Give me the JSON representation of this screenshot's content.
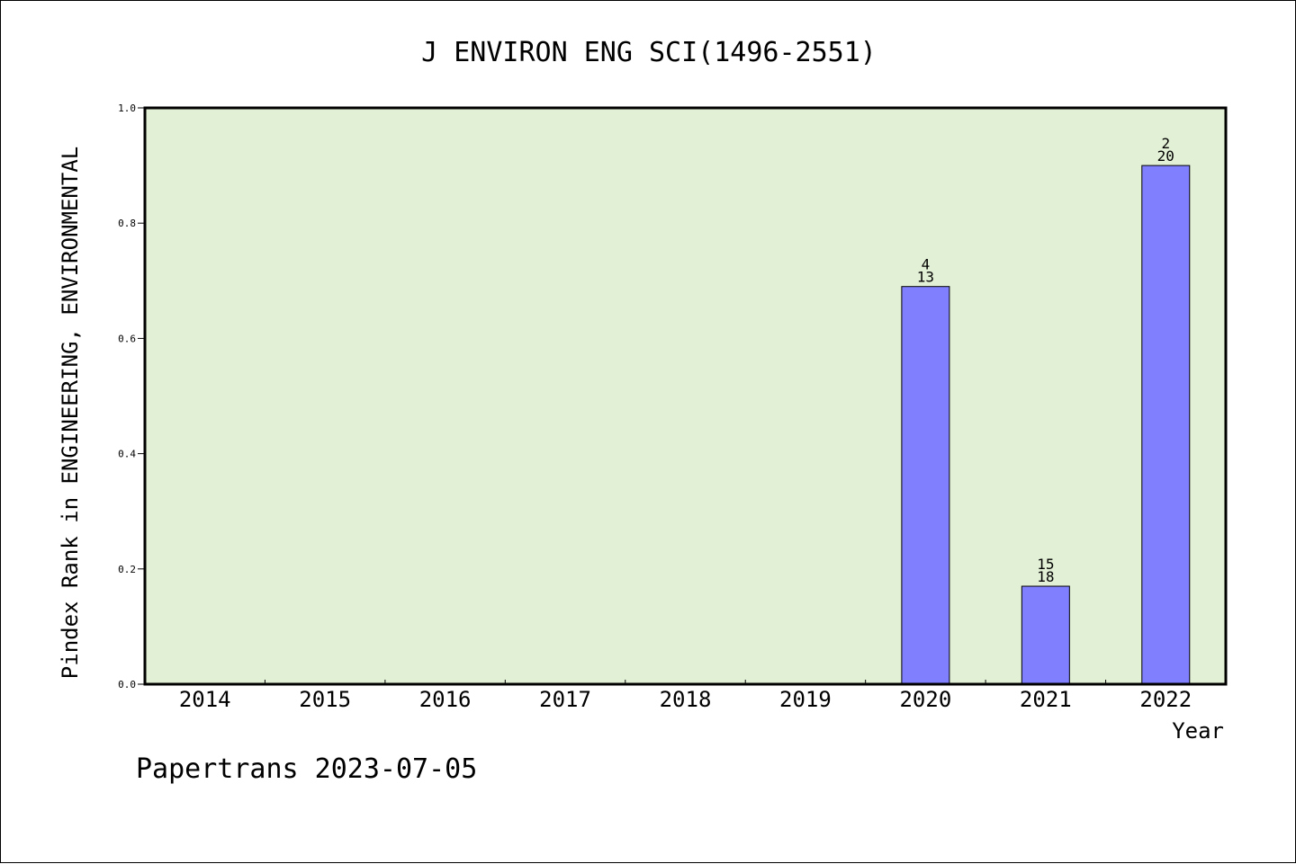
{
  "chart_data": {
    "type": "bar",
    "title": "J ENVIRON ENG SCI(1496-2551)",
    "xlabel": "Year",
    "ylabel": "Pindex Rank in ENGINEERING, ENVIRONMENTAL",
    "categories": [
      "2014",
      "2015",
      "2016",
      "2017",
      "2018",
      "2019",
      "2020",
      "2021",
      "2022"
    ],
    "values": [
      null,
      null,
      null,
      null,
      null,
      null,
      0.69,
      0.17,
      0.9
    ],
    "bar_labels": [
      null,
      null,
      null,
      null,
      null,
      null,
      {
        "top": "4",
        "bottom": "13"
      },
      {
        "top": "15",
        "bottom": "18"
      },
      {
        "top": "2",
        "bottom": "20"
      }
    ],
    "ylim": [
      0,
      1.0
    ],
    "yticks": [
      "0.0",
      "0.2",
      "0.4",
      "0.6",
      "0.8",
      "1.0"
    ],
    "grid": false,
    "colors": {
      "plot_background": "#e2f0d5",
      "bar": "#8080ff"
    }
  },
  "footer": "Papertrans 2023-07-05"
}
